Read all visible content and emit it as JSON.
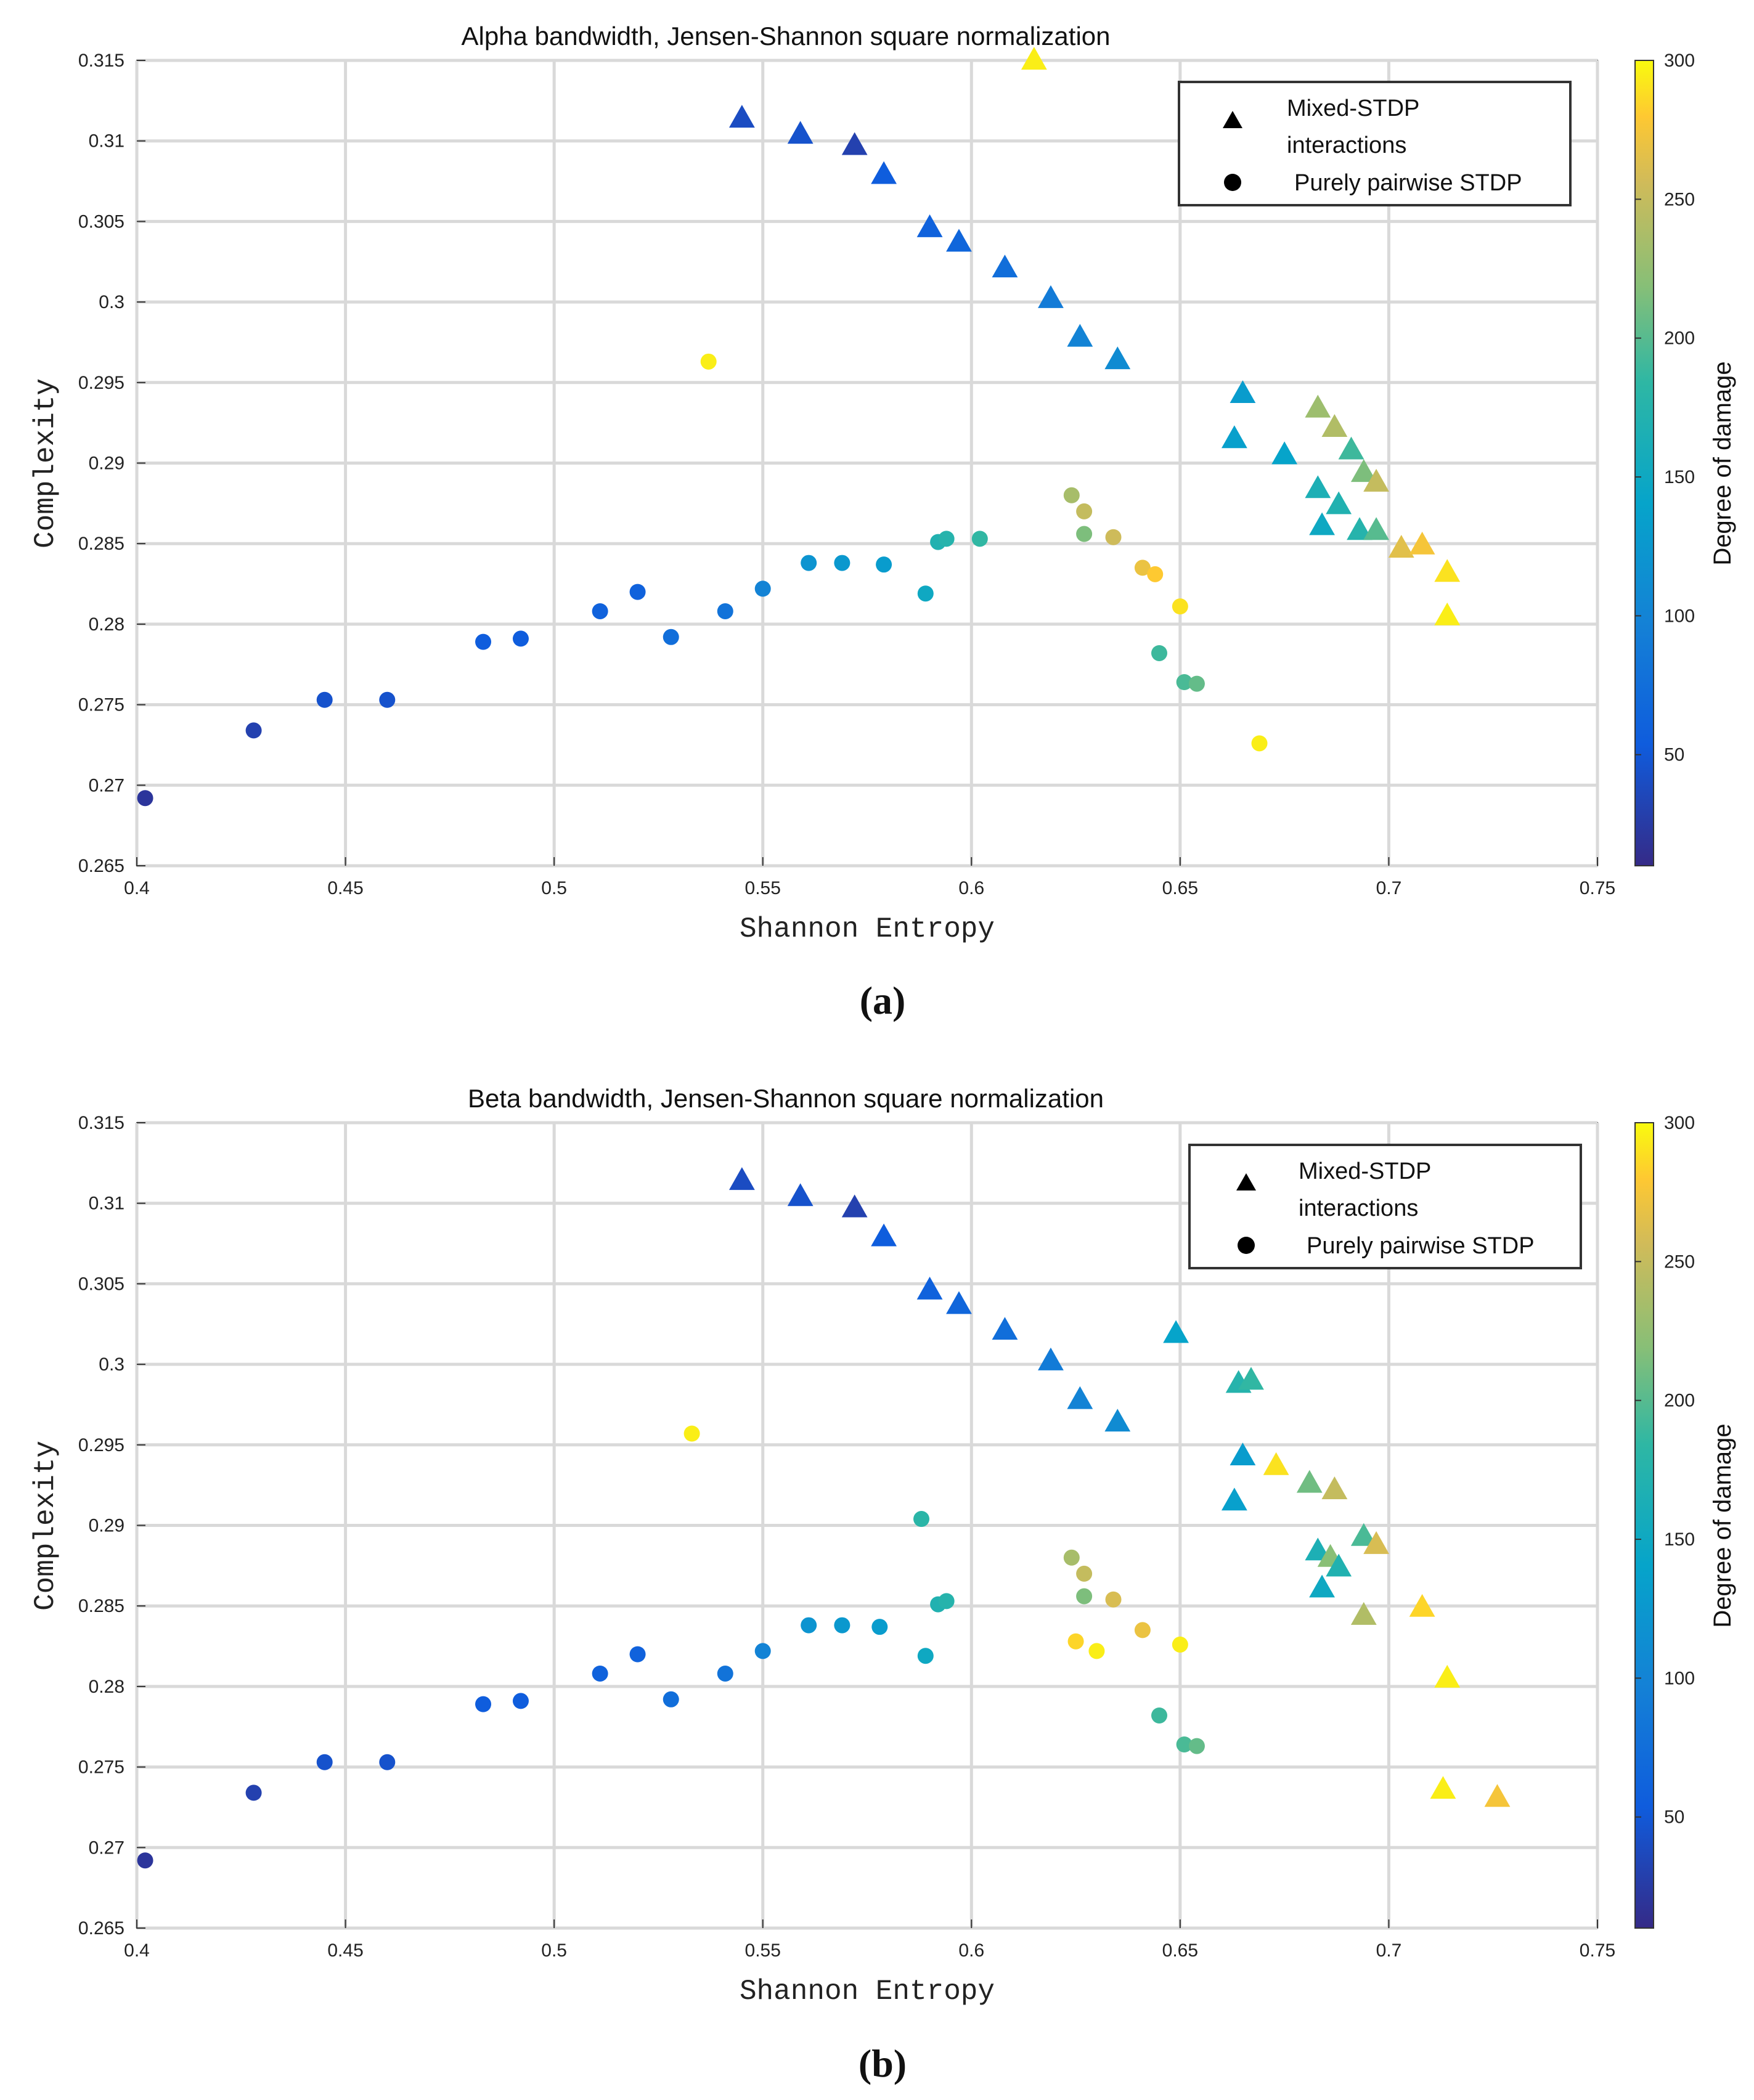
{
  "colorbar": {
    "label": "Degree of damage",
    "ticks": [
      50,
      100,
      150,
      200,
      250,
      300
    ],
    "range": [
      10,
      300
    ]
  },
  "legend": {
    "triangle_label_line1": "Mixed-STDP",
    "triangle_label_line2": "interactions",
    "circle_label": "Purely pairwise STDP"
  },
  "chart_data": [
    {
      "type": "scatter",
      "panel_label": "(a)",
      "title": "Alpha bandwidth, Jensen-Shannon square normalization",
      "xlabel": "Shannon Entropy",
      "ylabel": "Complexity",
      "xlim": [
        0.4,
        0.75
      ],
      "ylim": [
        0.265,
        0.315
      ],
      "xticks": [
        "0.4",
        "0.45",
        "0.5",
        "0.55",
        "0.6",
        "0.65",
        "0.7",
        "0.75"
      ],
      "yticks": [
        "0.265",
        "0.27",
        "0.275",
        "0.28",
        "0.285",
        "0.29",
        "0.295",
        "0.3",
        "0.305",
        "0.31",
        "0.315"
      ],
      "grid": true,
      "legend_position": "top-right",
      "series": [
        {
          "name": "Mixed-STDP interactions",
          "marker": "triangle",
          "points": [
            {
              "x": 0.545,
              "y": 0.3114,
              "c": 40
            },
            {
              "x": 0.559,
              "y": 0.3104,
              "c": 45
            },
            {
              "x": 0.572,
              "y": 0.3097,
              "c": 30
            },
            {
              "x": 0.579,
              "y": 0.3079,
              "c": 55
            },
            {
              "x": 0.59,
              "y": 0.3046,
              "c": 60
            },
            {
              "x": 0.597,
              "y": 0.3037,
              "c": 65
            },
            {
              "x": 0.608,
              "y": 0.3021,
              "c": 75
            },
            {
              "x": 0.619,
              "y": 0.3002,
              "c": 90
            },
            {
              "x": 0.626,
              "y": 0.2978,
              "c": 100
            },
            {
              "x": 0.635,
              "y": 0.2964,
              "c": 110
            },
            {
              "x": 0.615,
              "y": 0.315,
              "c": 295
            },
            {
              "x": 0.665,
              "y": 0.2943,
              "c": 130
            },
            {
              "x": 0.663,
              "y": 0.2915,
              "c": 135
            },
            {
              "x": 0.675,
              "y": 0.2905,
              "c": 140
            },
            {
              "x": 0.683,
              "y": 0.2934,
              "c": 230
            },
            {
              "x": 0.687,
              "y": 0.2922,
              "c": 240
            },
            {
              "x": 0.691,
              "y": 0.2908,
              "c": 190
            },
            {
              "x": 0.694,
              "y": 0.2894,
              "c": 215
            },
            {
              "x": 0.697,
              "y": 0.2888,
              "c": 250
            },
            {
              "x": 0.683,
              "y": 0.2884,
              "c": 165
            },
            {
              "x": 0.684,
              "y": 0.2861,
              "c": 150
            },
            {
              "x": 0.688,
              "y": 0.2874,
              "c": 170
            },
            {
              "x": 0.693,
              "y": 0.2858,
              "c": 175
            },
            {
              "x": 0.697,
              "y": 0.2858,
              "c": 200
            },
            {
              "x": 0.703,
              "y": 0.2847,
              "c": 265
            },
            {
              "x": 0.708,
              "y": 0.2849,
              "c": 275
            },
            {
              "x": 0.714,
              "y": 0.2832,
              "c": 290
            },
            {
              "x": 0.714,
              "y": 0.2805,
              "c": 295
            }
          ]
        },
        {
          "name": "Purely pairwise STDP",
          "marker": "circle",
          "points": [
            {
              "x": 0.402,
              "y": 0.2692,
              "c": 20
            },
            {
              "x": 0.428,
              "y": 0.2734,
              "c": 30
            },
            {
              "x": 0.445,
              "y": 0.2753,
              "c": 45
            },
            {
              "x": 0.46,
              "y": 0.2753,
              "c": 45
            },
            {
              "x": 0.483,
              "y": 0.2789,
              "c": 55
            },
            {
              "x": 0.492,
              "y": 0.2791,
              "c": 55
            },
            {
              "x": 0.511,
              "y": 0.2808,
              "c": 60
            },
            {
              "x": 0.52,
              "y": 0.282,
              "c": 60
            },
            {
              "x": 0.528,
              "y": 0.2792,
              "c": 75
            },
            {
              "x": 0.541,
              "y": 0.2808,
              "c": 80
            },
            {
              "x": 0.55,
              "y": 0.2822,
              "c": 100
            },
            {
              "x": 0.561,
              "y": 0.2838,
              "c": 120
            },
            {
              "x": 0.569,
              "y": 0.2838,
              "c": 125
            },
            {
              "x": 0.579,
              "y": 0.2837,
              "c": 130
            },
            {
              "x": 0.589,
              "y": 0.2819,
              "c": 150
            },
            {
              "x": 0.592,
              "y": 0.2851,
              "c": 170
            },
            {
              "x": 0.594,
              "y": 0.2853,
              "c": 175
            },
            {
              "x": 0.602,
              "y": 0.2853,
              "c": 185
            },
            {
              "x": 0.537,
              "y": 0.2963,
              "c": 295
            },
            {
              "x": 0.624,
              "y": 0.288,
              "c": 235
            },
            {
              "x": 0.627,
              "y": 0.287,
              "c": 250
            },
            {
              "x": 0.627,
              "y": 0.2856,
              "c": 215
            },
            {
              "x": 0.634,
              "y": 0.2854,
              "c": 255
            },
            {
              "x": 0.641,
              "y": 0.2835,
              "c": 270
            },
            {
              "x": 0.644,
              "y": 0.2831,
              "c": 280
            },
            {
              "x": 0.65,
              "y": 0.2811,
              "c": 290
            },
            {
              "x": 0.645,
              "y": 0.2782,
              "c": 190
            },
            {
              "x": 0.651,
              "y": 0.2764,
              "c": 195
            },
            {
              "x": 0.654,
              "y": 0.2763,
              "c": 205
            },
            {
              "x": 0.669,
              "y": 0.2726,
              "c": 295
            }
          ]
        }
      ]
    },
    {
      "type": "scatter",
      "panel_label": "(b)",
      "title": "Beta bandwidth, Jensen-Shannon square normalization",
      "xlabel": "Shannon Entropy",
      "ylabel": "Complexity",
      "xlim": [
        0.4,
        0.75
      ],
      "ylim": [
        0.265,
        0.315
      ],
      "xticks": [
        "0.4",
        "0.45",
        "0.5",
        "0.55",
        "0.6",
        "0.65",
        "0.7",
        "0.75"
      ],
      "yticks": [
        "0.265",
        "0.27",
        "0.275",
        "0.28",
        "0.285",
        "0.29",
        "0.295",
        "0.3",
        "0.305",
        "0.31",
        "0.315"
      ],
      "grid": true,
      "legend_position": "top-right",
      "series": [
        {
          "name": "Mixed-STDP interactions",
          "marker": "triangle",
          "points": [
            {
              "x": 0.545,
              "y": 0.3114,
              "c": 40
            },
            {
              "x": 0.559,
              "y": 0.3104,
              "c": 45
            },
            {
              "x": 0.572,
              "y": 0.3097,
              "c": 30
            },
            {
              "x": 0.579,
              "y": 0.3079,
              "c": 55
            },
            {
              "x": 0.59,
              "y": 0.3046,
              "c": 60
            },
            {
              "x": 0.597,
              "y": 0.3037,
              "c": 65
            },
            {
              "x": 0.608,
              "y": 0.3021,
              "c": 75
            },
            {
              "x": 0.619,
              "y": 0.3002,
              "c": 90
            },
            {
              "x": 0.626,
              "y": 0.2978,
              "c": 100
            },
            {
              "x": 0.635,
              "y": 0.2964,
              "c": 110
            },
            {
              "x": 0.649,
              "y": 0.3019,
              "c": 140
            },
            {
              "x": 0.664,
              "y": 0.2988,
              "c": 175
            },
            {
              "x": 0.667,
              "y": 0.299,
              "c": 185
            },
            {
              "x": 0.665,
              "y": 0.2943,
              "c": 130
            },
            {
              "x": 0.663,
              "y": 0.2915,
              "c": 135
            },
            {
              "x": 0.673,
              "y": 0.2937,
              "c": 290
            },
            {
              "x": 0.681,
              "y": 0.2926,
              "c": 210
            },
            {
              "x": 0.687,
              "y": 0.2922,
              "c": 250
            },
            {
              "x": 0.694,
              "y": 0.2893,
              "c": 195
            },
            {
              "x": 0.697,
              "y": 0.2888,
              "c": 260
            },
            {
              "x": 0.683,
              "y": 0.2884,
              "c": 165
            },
            {
              "x": 0.686,
              "y": 0.288,
              "c": 220
            },
            {
              "x": 0.688,
              "y": 0.2874,
              "c": 170
            },
            {
              "x": 0.684,
              "y": 0.2861,
              "c": 150
            },
            {
              "x": 0.694,
              "y": 0.2844,
              "c": 240
            },
            {
              "x": 0.708,
              "y": 0.2849,
              "c": 285
            },
            {
              "x": 0.714,
              "y": 0.2805,
              "c": 295
            },
            {
              "x": 0.713,
              "y": 0.2736,
              "c": 295
            },
            {
              "x": 0.726,
              "y": 0.2731,
              "c": 275
            }
          ]
        },
        {
          "name": "Purely pairwise STDP",
          "marker": "circle",
          "points": [
            {
              "x": 0.402,
              "y": 0.2692,
              "c": 20
            },
            {
              "x": 0.428,
              "y": 0.2734,
              "c": 30
            },
            {
              "x": 0.445,
              "y": 0.2753,
              "c": 45
            },
            {
              "x": 0.46,
              "y": 0.2753,
              "c": 45
            },
            {
              "x": 0.483,
              "y": 0.2789,
              "c": 55
            },
            {
              "x": 0.492,
              "y": 0.2791,
              "c": 55
            },
            {
              "x": 0.511,
              "y": 0.2808,
              "c": 60
            },
            {
              "x": 0.52,
              "y": 0.282,
              "c": 60
            },
            {
              "x": 0.528,
              "y": 0.2792,
              "c": 75
            },
            {
              "x": 0.541,
              "y": 0.2808,
              "c": 80
            },
            {
              "x": 0.55,
              "y": 0.2822,
              "c": 100
            },
            {
              "x": 0.561,
              "y": 0.2838,
              "c": 120
            },
            {
              "x": 0.569,
              "y": 0.2838,
              "c": 125
            },
            {
              "x": 0.578,
              "y": 0.2837,
              "c": 130
            },
            {
              "x": 0.589,
              "y": 0.2819,
              "c": 150
            },
            {
              "x": 0.588,
              "y": 0.2904,
              "c": 180
            },
            {
              "x": 0.592,
              "y": 0.2851,
              "c": 170
            },
            {
              "x": 0.594,
              "y": 0.2853,
              "c": 175
            },
            {
              "x": 0.533,
              "y": 0.2957,
              "c": 295
            },
            {
              "x": 0.624,
              "y": 0.288,
              "c": 235
            },
            {
              "x": 0.627,
              "y": 0.287,
              "c": 250
            },
            {
              "x": 0.627,
              "y": 0.2856,
              "c": 215
            },
            {
              "x": 0.634,
              "y": 0.2854,
              "c": 260
            },
            {
              "x": 0.625,
              "y": 0.2828,
              "c": 285
            },
            {
              "x": 0.63,
              "y": 0.2822,
              "c": 295
            },
            {
              "x": 0.641,
              "y": 0.2835,
              "c": 270
            },
            {
              "x": 0.65,
              "y": 0.2826,
              "c": 295
            },
            {
              "x": 0.645,
              "y": 0.2782,
              "c": 190
            },
            {
              "x": 0.651,
              "y": 0.2764,
              "c": 195
            },
            {
              "x": 0.654,
              "y": 0.2763,
              "c": 205
            }
          ]
        }
      ]
    }
  ]
}
